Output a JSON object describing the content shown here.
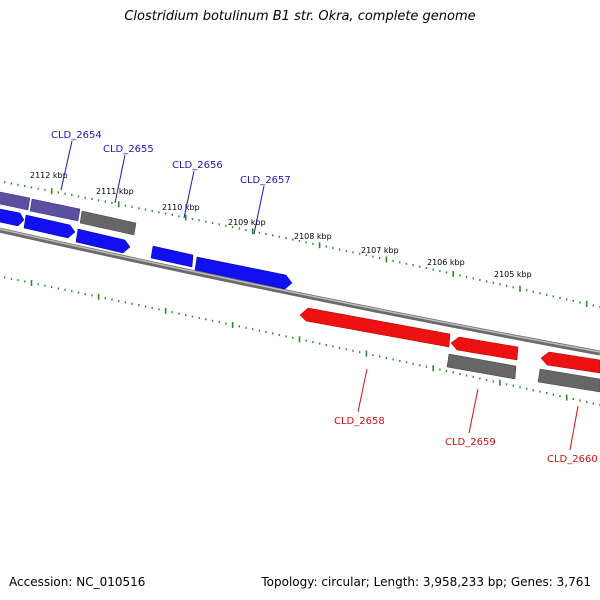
{
  "title": "Clostridium botulinum B1 str. Okra, complete genome",
  "footer": {
    "accession": "Accession: NC_010516",
    "summary": "Topology: circular; Length: 3,958,233 bp; Genes: 3,761"
  },
  "colors": {
    "forward_gene": "#1010f0",
    "forward_gene_dim": "#5a4fa0",
    "reverse_gene": "#ee1111",
    "pseudo_gene": "#666666",
    "backbone": "#888888",
    "tick": "#2a8a2a",
    "label_forward": "#1a1aa8",
    "label_reverse": "#cc1111"
  },
  "tick_labels": [
    "2112 kbp",
    "2111 kbp",
    "2110 kbp",
    "2109 kbp",
    "2108 kbp",
    "2107 kbp",
    "2106 kbp",
    "2105 kbp"
  ],
  "gene_labels_forward": [
    "CLD_2654",
    "CLD_2655",
    "CLD_2656",
    "CLD_2657"
  ],
  "gene_labels_reverse": [
    "CLD_2658",
    "CLD_2659",
    "CLD_2660"
  ]
}
